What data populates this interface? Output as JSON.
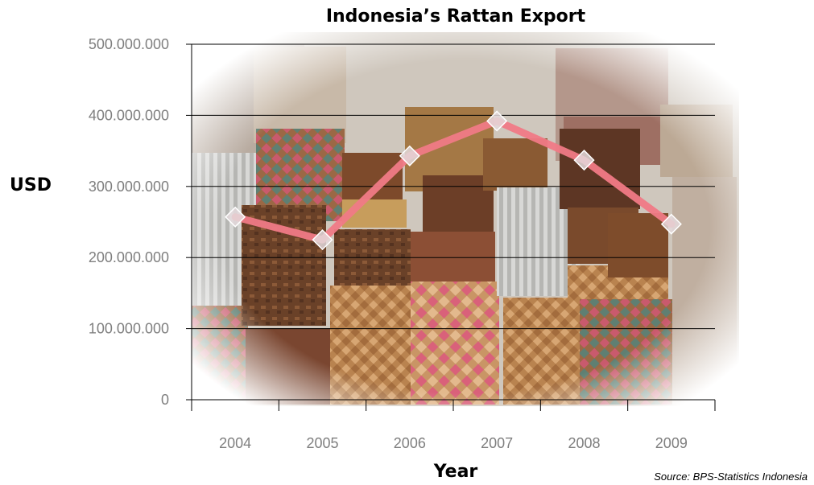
{
  "chart_data": {
    "type": "line",
    "title": "Indonesia’s Rattan Export",
    "xlabel": "Year",
    "ylabel": "USD",
    "categories": [
      "2004",
      "2005",
      "2006",
      "2007",
      "2008",
      "2009"
    ],
    "series": [
      {
        "values": [
          257000000,
          225000000,
          343000000,
          392000000,
          337000000,
          247000000
        ],
        "color": "#f07a86"
      }
    ],
    "ylim": [
      0,
      500000000
    ],
    "yticks": [
      0,
      100000000,
      200000000,
      300000000,
      400000000,
      500000000
    ],
    "ytick_labels": [
      "0",
      "100.000.000",
      "200.000.000",
      "300.000.000",
      "400.000.000",
      "500.000.000"
    ],
    "grid": true,
    "legend": "none",
    "background": "photo of stacked woven rattan baskets",
    "source": "Source: BPS-Statistics Indonesia"
  }
}
